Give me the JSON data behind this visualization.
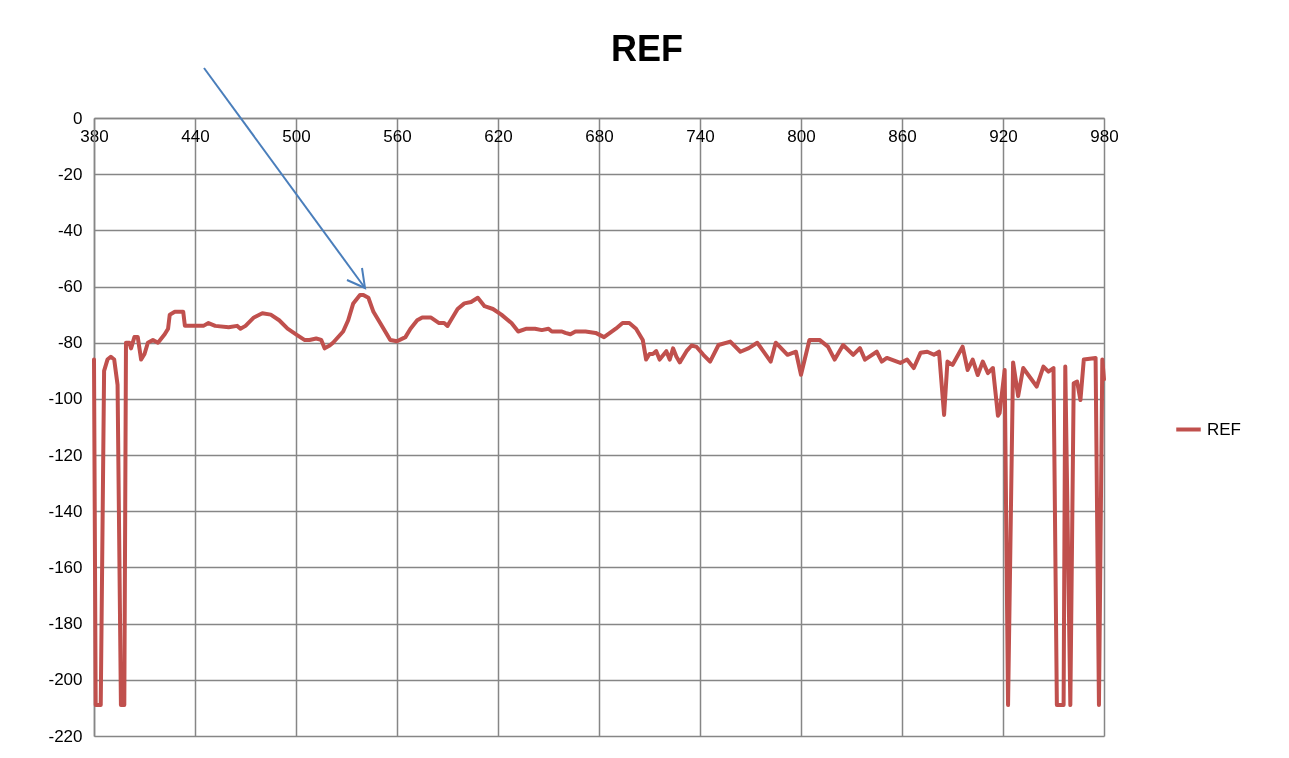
{
  "chart_data": {
    "type": "line",
    "title": "REF",
    "x": [
      380,
      381,
      384,
      386,
      388,
      390,
      392,
      394,
      396,
      398,
      399,
      401,
      402,
      404,
      406,
      408,
      410,
      412,
      415,
      418,
      422,
      424,
      425,
      428,
      433,
      434,
      440,
      445,
      448,
      452,
      460,
      465,
      467,
      470,
      475,
      480,
      485,
      490,
      495,
      500,
      505,
      508,
      512,
      515,
      517,
      520,
      522,
      528,
      531,
      534,
      538,
      540,
      543,
      546,
      550,
      553,
      556,
      560,
      565,
      568,
      572,
      575,
      580,
      585,
      588,
      590,
      592,
      596,
      600,
      604,
      608,
      612,
      617,
      622,
      628,
      632,
      637,
      642,
      646,
      650,
      652,
      658,
      660,
      663,
      666,
      672,
      678,
      683,
      690,
      694,
      698,
      702,
      706,
      708,
      710,
      712,
      714,
      716,
      720,
      722,
      724,
      726,
      728,
      732,
      735,
      738,
      742,
      746,
      751,
      758,
      764,
      769,
      774,
      782,
      785,
      792,
      797,
      800,
      805,
      811,
      816,
      820,
      825,
      831,
      835,
      838,
      845,
      848,
      851,
      859,
      863,
      867,
      871,
      875,
      879,
      882,
      885,
      887,
      890,
      896,
      899,
      902,
      905,
      908,
      911,
      914,
      917,
      918,
      921,
      923,
      926,
      929,
      932,
      940,
      944,
      947,
      950,
      952,
      956,
      957,
      960,
      962,
      964,
      966,
      968,
      975,
      977,
      979,
      980
    ],
    "series": [
      {
        "name": "REF",
        "color": "#c0504d",
        "values": [
          -86,
          -209,
          -209,
          -90,
          -86,
          -85,
          -86,
          -95,
          -209,
          -209,
          -80,
          -80,
          -82,
          -78,
          -78,
          -86,
          -84,
          -80,
          -79,
          -80,
          -77,
          -75,
          -70,
          -69,
          -69,
          -74,
          -74,
          -74,
          -73,
          -74,
          -74.5,
          -74,
          -75,
          -74,
          -71,
          -69.5,
          -70,
          -72,
          -75,
          -77,
          -79,
          -79,
          -78.5,
          -79,
          -82,
          -81,
          -80,
          -76,
          -72,
          -66,
          -63,
          -63,
          -64,
          -69,
          -73,
          -76,
          -79,
          -79.5,
          -78,
          -75,
          -72,
          -71,
          -71,
          -73,
          -73,
          -74,
          -72,
          -68,
          -66,
          -65.5,
          -64,
          -67,
          -68,
          -70,
          -73,
          -76,
          -75,
          -75,
          -75.5,
          -75,
          -76,
          -76,
          -76.5,
          -77,
          -76,
          -76,
          -76.5,
          -78,
          -75,
          -73,
          -73,
          -75,
          -79,
          -86,
          -84,
          -84,
          -83,
          -86,
          -83,
          -86,
          -82,
          -85,
          -87,
          -83,
          -81,
          -81.5,
          -84.3,
          -86.7,
          -80.8,
          -79.6,
          -83.2,
          -81.9,
          -80,
          -86.7,
          -80,
          -84.3,
          -83.2,
          -91.4,
          -79,
          -79,
          -81.4,
          -86,
          -80.8,
          -84.3,
          -81.9,
          -86,
          -83.2,
          -86.7,
          -85.4,
          -87.2,
          -86,
          -89,
          -83.6,
          -83.2,
          -84.3,
          -83.2,
          -105.7,
          -86.7,
          -87.9,
          -81.4,
          -89.7,
          -86,
          -91.5,
          -86.7,
          -90.8,
          -89,
          -106,
          -105,
          -89.7,
          -209,
          -87,
          -99,
          -89,
          -95.6,
          -88.5,
          -90.3,
          -89,
          -209,
          -209,
          -88.5,
          -209,
          -94.4,
          -93.8,
          -100.4,
          -86,
          -85.4,
          -209,
          -86,
          -93
        ]
      }
    ],
    "xlim": [
      380,
      980
    ],
    "xticks": [
      380,
      440,
      500,
      560,
      620,
      680,
      740,
      800,
      860,
      920,
      980
    ],
    "ylim": [
      -220,
      0
    ],
    "yticks": [
      0,
      -20,
      -40,
      -60,
      -80,
      -100,
      -120,
      -140,
      -160,
      -180,
      -200,
      -220
    ],
    "grid": true,
    "legend": "right"
  }
}
